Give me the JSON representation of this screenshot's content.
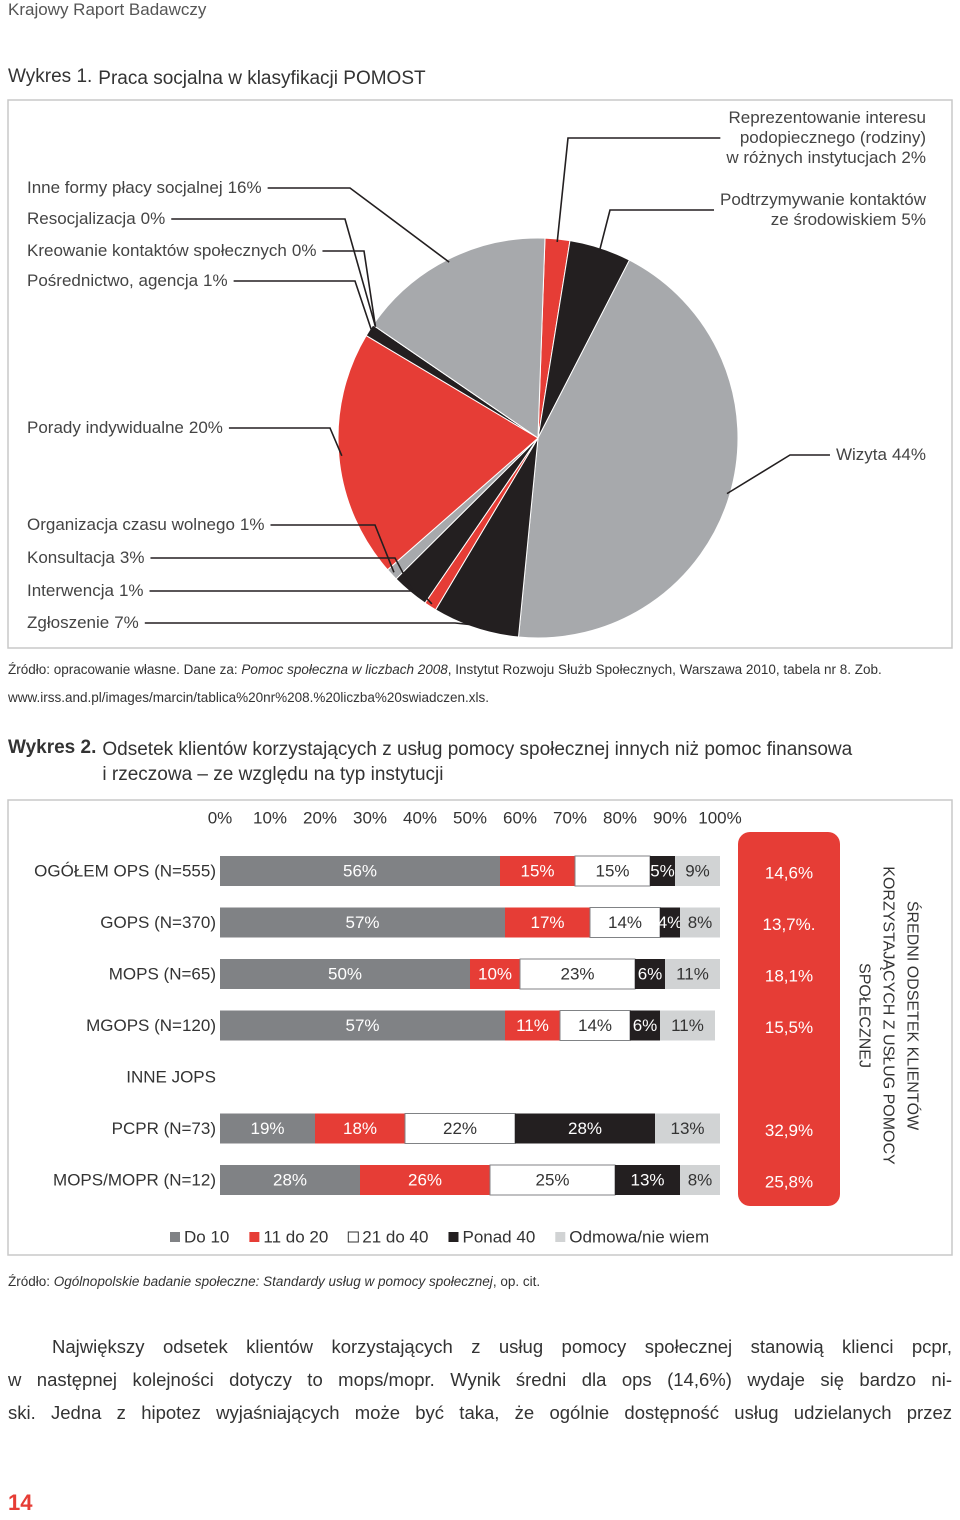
{
  "header": {
    "title": "Krajowy Raport Badawczy"
  },
  "chart_data": [
    {
      "type": "pie",
      "title_number": "Wykres 1.",
      "title": "Praca socjalna w klasyfikacji POMOST",
      "categories": [
        "Reprezentowanie interesu\npodopiecznego (rodziny)\nw różnych instytucjach",
        "Podtrzymywanie kontaktów\nze środowiskiem",
        "Wizyta",
        "Zgłoszenie",
        "Interwencja",
        "Konsultacja",
        "Organizacja czasu wolnego",
        "Porady indywidualne",
        "Pośrednictwo, agencja",
        "Kreowanie kontaktów społecznych",
        "Resocjalizacja",
        "Inne formy płacy socjalnej"
      ],
      "values": [
        2,
        5,
        44,
        7,
        1,
        3,
        1,
        20,
        1,
        0,
        0,
        16
      ],
      "value_labels": [
        "2%",
        "5%",
        "44%",
        "7%",
        "1%",
        "3%",
        "1%",
        "20%",
        "1%",
        "0%",
        "0%",
        "16%"
      ],
      "colors": [
        "#e63d36",
        "#231f20",
        "#a7a9ac",
        "#231f20",
        "#e63d36",
        "#231f20",
        "#a7a9ac",
        "#e63d36",
        "#231f20",
        "#231f20",
        "#e63d36",
        "#a7a9ac"
      ]
    },
    {
      "type": "bar",
      "orientation": "horizontal",
      "stacked": true,
      "title_number": "Wykres 2.",
      "title": "Odsetek klientów korzystających z usług pomocy społecznej innych niż pomoc finansowa\ni rzeczowa – ze względu na typ instytucji",
      "categories": [
        "OGÓŁEM OPS (N=555)",
        "GOPS (N=370)",
        "MOPS (N=65)",
        "MGOPS (N=120)",
        "INNE JOPS",
        "PCPR (N=73)",
        "MOPS/MOPR (N=12)"
      ],
      "xlim": [
        0,
        100
      ],
      "xticks": [
        {
          "value": 0,
          "label": "0%"
        },
        {
          "value": 10,
          "label": "10%"
        },
        {
          "value": 20,
          "label": "20%"
        },
        {
          "value": 30,
          "label": "30%"
        },
        {
          "value": 40,
          "label": "40%"
        },
        {
          "value": 50,
          "label": "50%"
        },
        {
          "value": 60,
          "label": "60%"
        },
        {
          "value": 70,
          "label": "70%"
        },
        {
          "value": 80,
          "label": "80%"
        },
        {
          "value": 90,
          "label": "90%"
        },
        {
          "value": 100,
          "label": "100%"
        }
      ],
      "legend": "bottom",
      "series": [
        {
          "name": "Do 10",
          "color": "#808285",
          "values": [
            56,
            57,
            50,
            57,
            null,
            19,
            28
          ],
          "value_labels": [
            "56%",
            "57%",
            "50%",
            "57%",
            null,
            "19%",
            "28%"
          ]
        },
        {
          "name": "11 do 20",
          "color": "#e63d36",
          "values": [
            15,
            17,
            10,
            11,
            null,
            18,
            26
          ],
          "value_labels": [
            "15%",
            "17%",
            "10%",
            "11%",
            null,
            "18%",
            "26%"
          ]
        },
        {
          "name": "21 do 40",
          "color": "#ffffff",
          "values": [
            15,
            14,
            23,
            14,
            null,
            22,
            25
          ],
          "value_labels": [
            "15%",
            "14%",
            "23%",
            "14%",
            null,
            "22%",
            "25%"
          ]
        },
        {
          "name": "Ponad 40",
          "color": "#231f20",
          "values": [
            5,
            4,
            6,
            6,
            null,
            28,
            13
          ],
          "value_labels": [
            "5%",
            "4%",
            "6%",
            "6%",
            null,
            "28%",
            "13%"
          ]
        },
        {
          "name": "Odmowa/nie wiem",
          "color": "#d1d3d4",
          "values": [
            9,
            8,
            11,
            11,
            null,
            13,
            8
          ],
          "value_labels": [
            "9%",
            "8%",
            "11%",
            "11%",
            null,
            "13%",
            "8%"
          ]
        }
      ],
      "averages": {
        "name": "ŚREDNI ODSETEK KLIENTÓW\nKORZYSTAJĄCYCH Z USŁUG POMOCY\nSPOŁECZNEJ",
        "color": "#e63d36",
        "values": [
          14.6,
          13.7,
          18.1,
          15.5,
          null,
          32.9,
          25.8
        ],
        "value_labels": [
          "14,6%",
          "13,7%.",
          "18,1%",
          "15,5%",
          null,
          "32,9%",
          "25,8%"
        ]
      }
    }
  ],
  "sources": [
    {
      "prefix": "Źródło: opracowanie własne. Dane za: ",
      "title": "Pomoc społeczna w liczbach 2008",
      "suffix": ", Instytut Rozwoju Służb Społecznych, Warszawa 2010, tabela nr 8. Zob. www.irss.and.pl/images/marcin/tablica%20nr%208.%20liczba%20swiadczen.xls."
    },
    {
      "prefix": "Źródło: ",
      "title": "Ogólnopolskie badanie społeczne: Standardy usług w pomocy społecznej",
      "suffix": ", op. cit."
    }
  ],
  "body": {
    "lines": [
      "Największy odsetek klientów korzystających z usług pomocy społecznej stanowią klienci pcpr,",
      "w następnej kolejności dotyczy to mops/mopr. Wynik średni dla ops (14,6%) wydaje się bardzo ni-",
      "ski. Jedna z hipotez wyjaśniających może być taka, że ogólnie dostępność usług udzielanych przez"
    ]
  },
  "footer": {
    "page_number": "14"
  }
}
